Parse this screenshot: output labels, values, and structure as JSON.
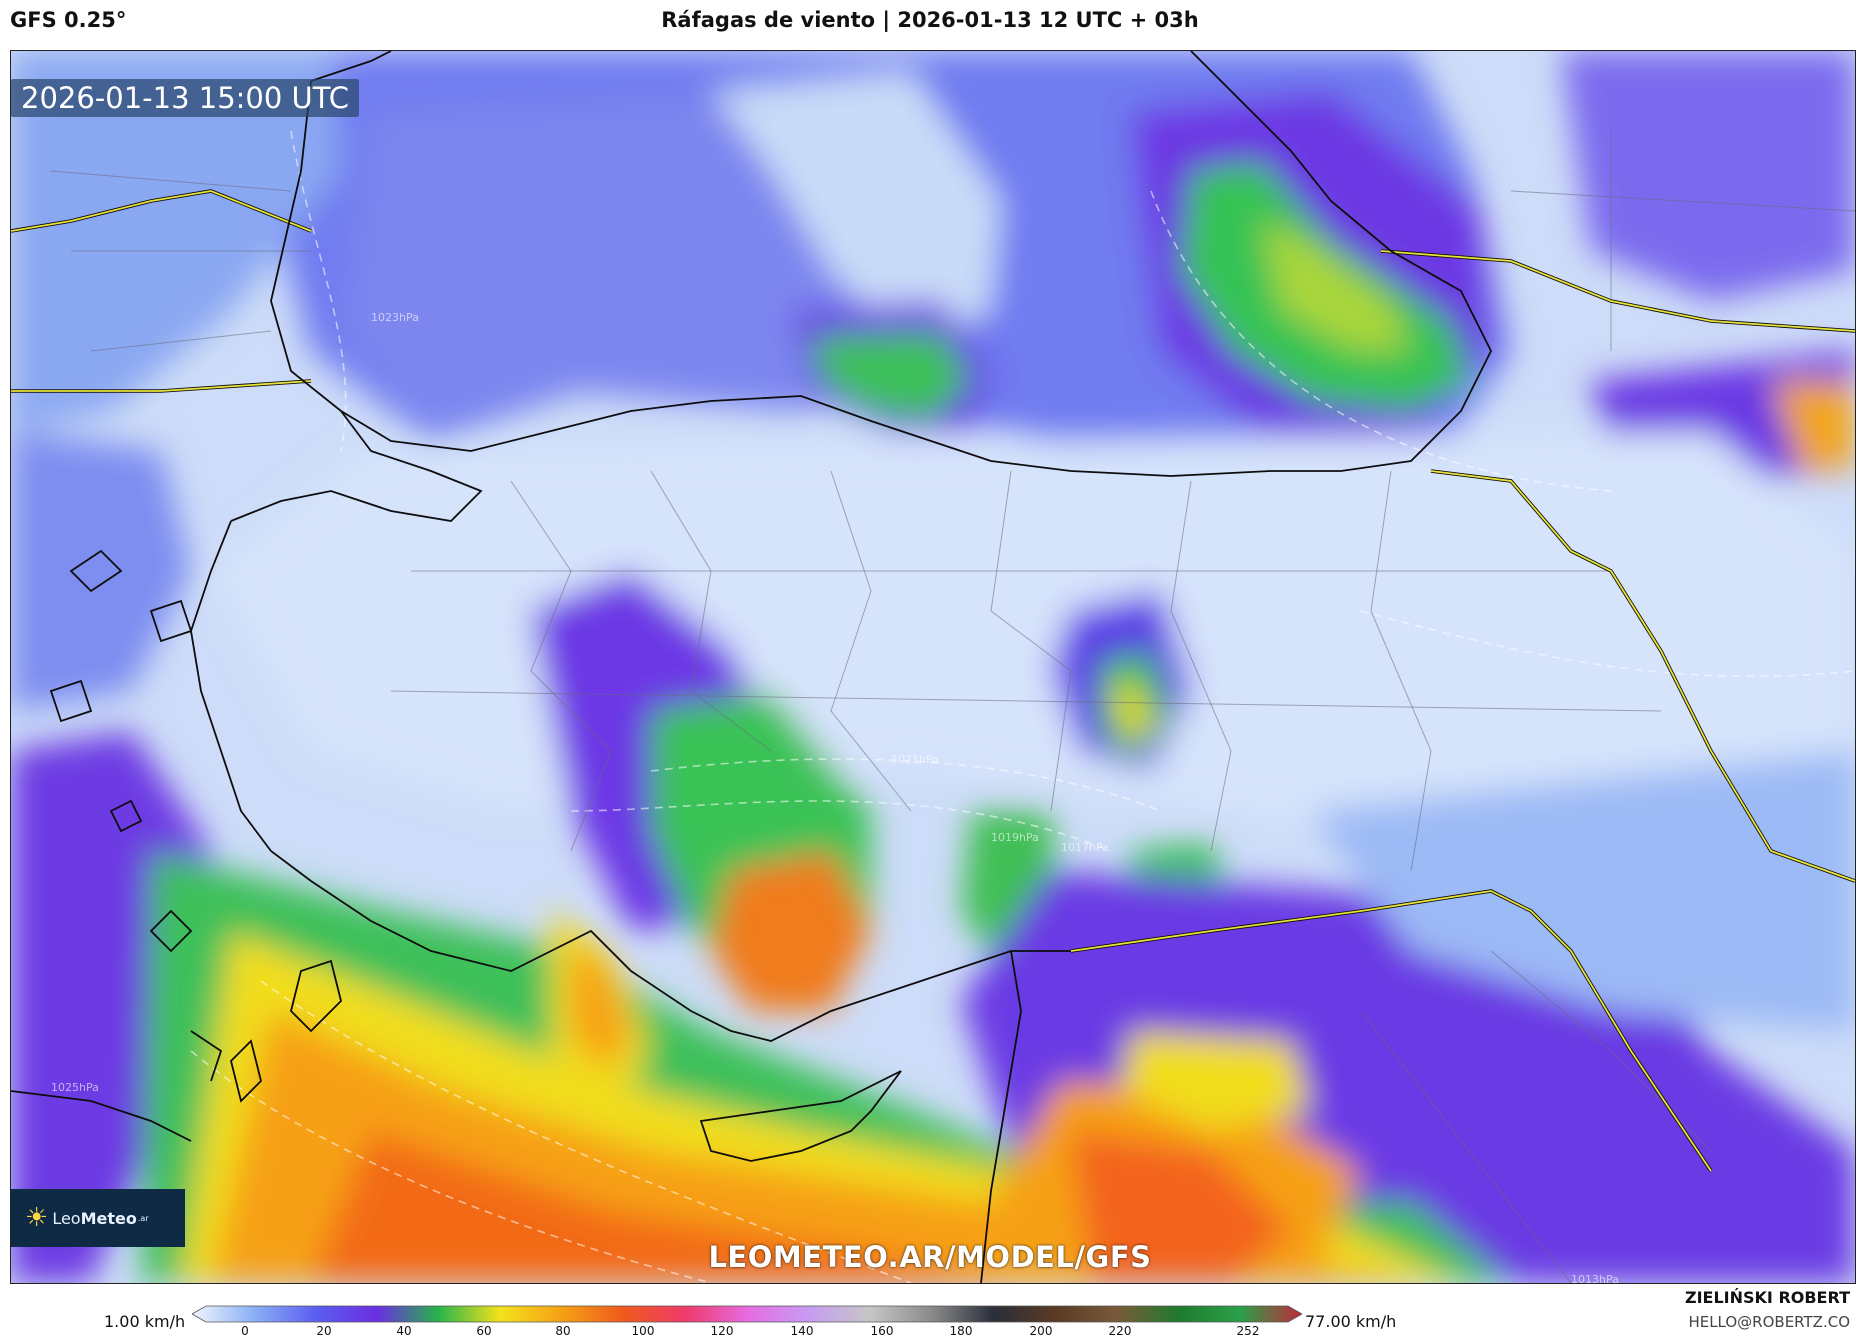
{
  "header": {
    "model": "GFS 0.25°",
    "title": "Ráfagas de viento | 2026-01-13 12 UTC + 03h"
  },
  "map": {
    "valid_time": "2026-01-13 15:00 UTC",
    "watermark": "LEOMETEO.AR/MODEL/GFS",
    "isobar_labels": [
      "1021hPa",
      "1019hPa",
      "1017hPa",
      "1023hPa",
      "1025hPa",
      "1013hPa"
    ],
    "palette": {
      "calm": "#dbe8fb",
      "light": "#aac6f6",
      "blue": "#6f7ef0",
      "violet": "#6d35e6",
      "green": "#36c354",
      "yellow": "#f2dd1a",
      "orange": "#f7a213",
      "red": "#f36315"
    }
  },
  "logo": {
    "sun": "☀",
    "text_light": "Leo",
    "text_bold": "Meteo",
    "suffix": ".ar"
  },
  "colorbar": {
    "min_label": "1.00 km/h",
    "max_label": "77.00 km/h",
    "ticks": [
      "0",
      "20",
      "40",
      "60",
      "80",
      "100",
      "120",
      "140",
      "160",
      "180",
      "200",
      "220",
      "252"
    ],
    "stops": [
      "#f2f6fd",
      "#8bb0f5",
      "#5b5ef0",
      "#6a2ee2",
      "#28b44a",
      "#f4e21c",
      "#f5a015",
      "#ef5a1c",
      "#ef3a6a",
      "#e66be0",
      "#c69cf2",
      "#c6c6c6",
      "#8a8a8a",
      "#2a2f3a",
      "#5a3a22",
      "#7a5a3a",
      "#1f7a2e",
      "#2aa04a",
      "#c2283a"
    ]
  },
  "credit": {
    "name": "ZIELIŃSKI ROBERT",
    "email": "HELLO@ROBERTZ.CO"
  }
}
